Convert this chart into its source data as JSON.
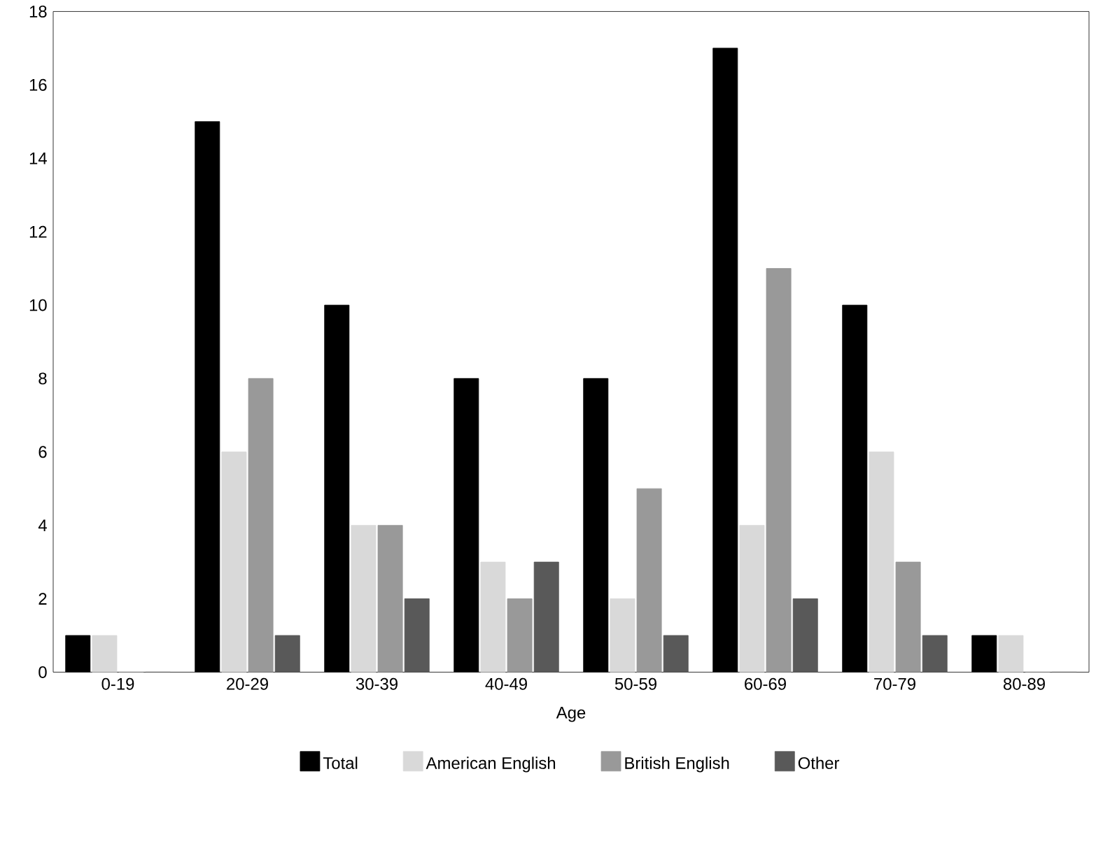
{
  "chart_data": {
    "type": "bar",
    "xlabel": "Age",
    "categories": [
      "0-19",
      "20-29",
      "30-39",
      "40-49",
      "50-59",
      "60-69",
      "70-79",
      "80-89"
    ],
    "series": [
      {
        "name": "Total",
        "color": "#000000",
        "values": [
          1,
          15,
          10,
          8,
          8,
          17,
          10,
          1
        ]
      },
      {
        "name": "American English",
        "color": "#d9d9d9",
        "values": [
          1,
          6,
          4,
          3,
          2,
          4,
          6,
          1
        ]
      },
      {
        "name": "British English",
        "color": "#999999",
        "values": [
          0,
          8,
          4,
          2,
          5,
          11,
          3,
          0
        ]
      },
      {
        "name": "Other",
        "color": "#595959",
        "values": [
          0,
          1,
          2,
          3,
          1,
          2,
          1,
          0
        ]
      }
    ],
    "ylim": [
      0,
      18
    ],
    "yticks": [
      0,
      2,
      4,
      6,
      8,
      10,
      12,
      14,
      16,
      18
    ],
    "grid": false,
    "legend": "bottom"
  }
}
